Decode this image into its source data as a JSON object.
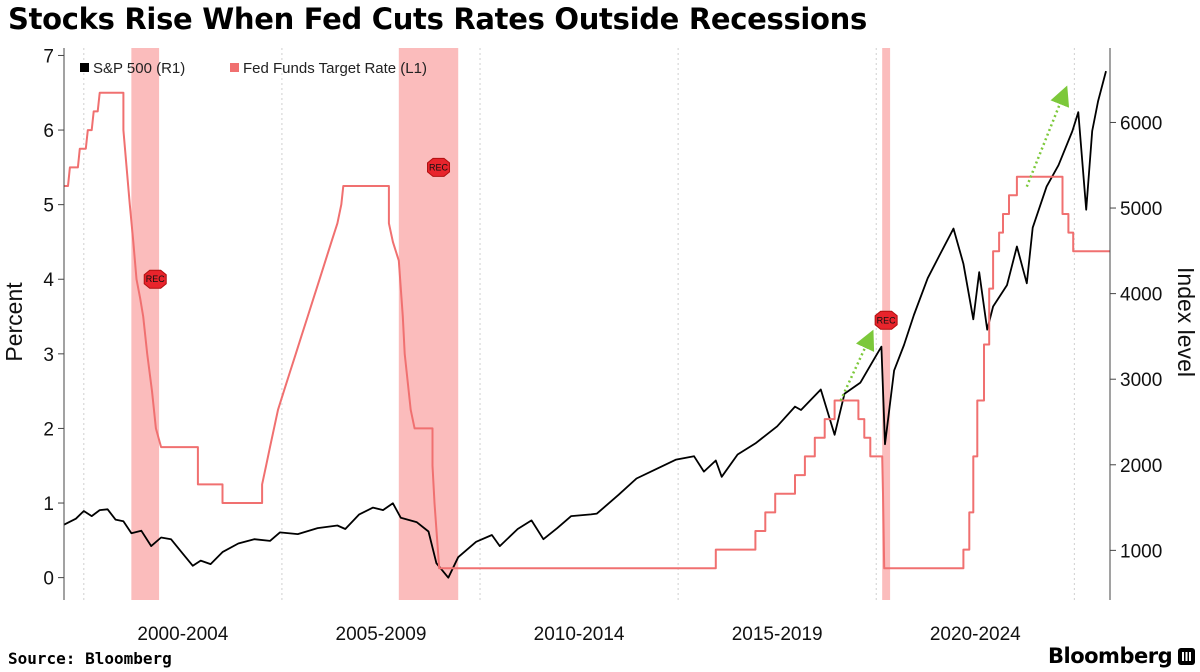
{
  "title": "Stocks Rise When Fed Cuts Rates Outside Recessions",
  "source": "Source: Bloomberg",
  "brand": "Bloomberg",
  "colors": {
    "sp500": "#000000",
    "fed_rate": "#f07070",
    "recession_band": "#f9a0a0",
    "rec_marker": "#e8242c",
    "arrow": "#7cc83a",
    "grid": "#cfcfcf"
  },
  "chart_data": {
    "type": "line",
    "title": "Stocks Rise When Fed Cuts Rates Outside Recessions",
    "x_range": [
      1999.5,
      2025.9
    ],
    "categories": [
      "2000-2004",
      "2005-2009",
      "2010-2014",
      "2015-2019",
      "2020-2024"
    ],
    "y_left": {
      "label": "Percent",
      "range": [
        -0.3,
        7.1
      ],
      "ticks": [
        0,
        1,
        2,
        3,
        4,
        5,
        6,
        7
      ]
    },
    "y_right": {
      "label": "Index level",
      "range": [
        420,
        6870
      ],
      "ticks": [
        1000,
        2000,
        3000,
        4000,
        5000,
        6000
      ]
    },
    "grid": "vertical dotted",
    "legend": {
      "placement": "top-left",
      "entries": [
        "S&P 500 (R1)",
        "Fed Funds Target Rate (L1)"
      ]
    },
    "recessions": [
      {
        "start": 2001.2,
        "end": 2001.9,
        "marker": "REC",
        "marker_value": 4.0
      },
      {
        "start": 2007.95,
        "end": 2009.45,
        "marker": "REC",
        "marker_value": 5.5
      },
      {
        "start": 2020.15,
        "end": 2020.35,
        "marker": "REC",
        "marker_value": 3.45
      }
    ],
    "annotations": [
      {
        "type": "arrow",
        "from": [
          2019.1,
          2750
        ],
        "to": [
          2019.85,
          3500
        ],
        "color": "green"
      },
      {
        "type": "arrow",
        "from": [
          2023.8,
          5250
        ],
        "to": [
          2024.75,
          6350
        ],
        "color": "green"
      }
    ],
    "series": [
      {
        "name": "S&P 500 (R1)",
        "axis": "right",
        "points": [
          [
            1999.5,
            1300
          ],
          [
            1999.8,
            1370
          ],
          [
            2000.0,
            1460
          ],
          [
            2000.2,
            1400
          ],
          [
            2000.4,
            1470
          ],
          [
            2000.6,
            1480
          ],
          [
            2000.8,
            1360
          ],
          [
            2001.0,
            1340
          ],
          [
            2001.2,
            1200
          ],
          [
            2001.45,
            1230
          ],
          [
            2001.7,
            1050
          ],
          [
            2001.95,
            1150
          ],
          [
            2002.2,
            1130
          ],
          [
            2002.5,
            960
          ],
          [
            2002.75,
            820
          ],
          [
            2002.95,
            880
          ],
          [
            2003.2,
            840
          ],
          [
            2003.5,
            980
          ],
          [
            2003.9,
            1080
          ],
          [
            2004.3,
            1130
          ],
          [
            2004.7,
            1110
          ],
          [
            2004.95,
            1210
          ],
          [
            2005.4,
            1190
          ],
          [
            2005.9,
            1260
          ],
          [
            2006.4,
            1290
          ],
          [
            2006.6,
            1250
          ],
          [
            2006.95,
            1420
          ],
          [
            2007.3,
            1500
          ],
          [
            2007.55,
            1470
          ],
          [
            2007.8,
            1550
          ],
          [
            2008.0,
            1380
          ],
          [
            2008.4,
            1330
          ],
          [
            2008.7,
            1220
          ],
          [
            2008.9,
            850
          ],
          [
            2009.2,
            680
          ],
          [
            2009.45,
            920
          ],
          [
            2009.9,
            1100
          ],
          [
            2010.3,
            1180
          ],
          [
            2010.5,
            1050
          ],
          [
            2010.95,
            1250
          ],
          [
            2011.3,
            1350
          ],
          [
            2011.6,
            1130
          ],
          [
            2011.95,
            1260
          ],
          [
            2012.3,
            1400
          ],
          [
            2012.8,
            1420
          ],
          [
            2012.95,
            1430
          ],
          [
            2013.5,
            1650
          ],
          [
            2013.95,
            1840
          ],
          [
            2014.4,
            1940
          ],
          [
            2014.95,
            2060
          ],
          [
            2015.4,
            2100
          ],
          [
            2015.65,
            1920
          ],
          [
            2015.95,
            2050
          ],
          [
            2016.1,
            1860
          ],
          [
            2016.5,
            2120
          ],
          [
            2016.95,
            2250
          ],
          [
            2017.5,
            2450
          ],
          [
            2017.95,
            2680
          ],
          [
            2018.1,
            2640
          ],
          [
            2018.6,
            2880
          ],
          [
            2018.95,
            2350
          ],
          [
            2019.2,
            2830
          ],
          [
            2019.6,
            2960
          ],
          [
            2019.95,
            3240
          ],
          [
            2020.13,
            3380
          ],
          [
            2020.22,
            2240
          ],
          [
            2020.45,
            3100
          ],
          [
            2020.7,
            3400
          ],
          [
            2020.95,
            3750
          ],
          [
            2021.3,
            4180
          ],
          [
            2021.6,
            4450
          ],
          [
            2021.95,
            4760
          ],
          [
            2022.2,
            4350
          ],
          [
            2022.45,
            3700
          ],
          [
            2022.6,
            4250
          ],
          [
            2022.8,
            3580
          ],
          [
            2022.95,
            3850
          ],
          [
            2023.3,
            4100
          ],
          [
            2023.55,
            4550
          ],
          [
            2023.8,
            4120
          ],
          [
            2023.95,
            4770
          ],
          [
            2024.3,
            5250
          ],
          [
            2024.6,
            5500
          ],
          [
            2024.95,
            5900
          ],
          [
            2025.1,
            6120
          ],
          [
            2025.3,
            4980
          ],
          [
            2025.45,
            5900
          ],
          [
            2025.6,
            6250
          ],
          [
            2025.8,
            6600
          ]
        ]
      },
      {
        "name": "Fed Funds Target Rate (L1)",
        "axis": "left",
        "points": [
          [
            1999.5,
            5.25
          ],
          [
            1999.6,
            5.25
          ],
          [
            1999.65,
            5.5
          ],
          [
            1999.85,
            5.5
          ],
          [
            1999.9,
            5.75
          ],
          [
            2000.05,
            5.75
          ],
          [
            2000.1,
            6.0
          ],
          [
            2000.2,
            6.0
          ],
          [
            2000.25,
            6.25
          ],
          [
            2000.35,
            6.25
          ],
          [
            2000.4,
            6.5
          ],
          [
            2001.0,
            6.5
          ],
          [
            2001.0,
            6.0
          ],
          [
            2001.08,
            5.5
          ],
          [
            2001.16,
            5.0
          ],
          [
            2001.25,
            4.5
          ],
          [
            2001.33,
            4.0
          ],
          [
            2001.42,
            3.75
          ],
          [
            2001.5,
            3.5
          ],
          [
            2001.6,
            3.0
          ],
          [
            2001.72,
            2.5
          ],
          [
            2001.82,
            2.0
          ],
          [
            2001.95,
            1.75
          ],
          [
            2002.88,
            1.75
          ],
          [
            2002.88,
            1.25
          ],
          [
            2003.5,
            1.25
          ],
          [
            2003.5,
            1.0
          ],
          [
            2004.5,
            1.0
          ],
          [
            2004.5,
            1.25
          ],
          [
            2004.6,
            1.5
          ],
          [
            2004.7,
            1.75
          ],
          [
            2004.8,
            2.0
          ],
          [
            2004.9,
            2.25
          ],
          [
            2005.05,
            2.5
          ],
          [
            2005.2,
            2.75
          ],
          [
            2005.35,
            3.0
          ],
          [
            2005.5,
            3.25
          ],
          [
            2005.65,
            3.5
          ],
          [
            2005.8,
            3.75
          ],
          [
            2005.95,
            4.0
          ],
          [
            2006.1,
            4.25
          ],
          [
            2006.25,
            4.5
          ],
          [
            2006.4,
            4.75
          ],
          [
            2006.5,
            5.0
          ],
          [
            2006.55,
            5.25
          ],
          [
            2007.7,
            5.25
          ],
          [
            2007.7,
            4.75
          ],
          [
            2007.8,
            4.5
          ],
          [
            2007.95,
            4.25
          ],
          [
            2008.05,
            3.5
          ],
          [
            2008.1,
            3.0
          ],
          [
            2008.25,
            2.25
          ],
          [
            2008.35,
            2.0
          ],
          [
            2008.8,
            2.0
          ],
          [
            2008.8,
            1.5
          ],
          [
            2008.85,
            1.0
          ],
          [
            2008.97,
            0.125
          ],
          [
            2015.95,
            0.125
          ],
          [
            2015.95,
            0.375
          ],
          [
            2016.95,
            0.375
          ],
          [
            2016.95,
            0.625
          ],
          [
            2017.2,
            0.625
          ],
          [
            2017.2,
            0.875
          ],
          [
            2017.45,
            0.875
          ],
          [
            2017.45,
            1.125
          ],
          [
            2017.95,
            1.125
          ],
          [
            2017.95,
            1.375
          ],
          [
            2018.2,
            1.375
          ],
          [
            2018.2,
            1.625
          ],
          [
            2018.45,
            1.625
          ],
          [
            2018.45,
            1.875
          ],
          [
            2018.7,
            1.875
          ],
          [
            2018.7,
            2.125
          ],
          [
            2018.95,
            2.125
          ],
          [
            2018.95,
            2.375
          ],
          [
            2019.55,
            2.375
          ],
          [
            2019.55,
            2.125
          ],
          [
            2019.7,
            2.125
          ],
          [
            2019.7,
            1.875
          ],
          [
            2019.85,
            1.875
          ],
          [
            2019.85,
            1.625
          ],
          [
            2020.15,
            1.625
          ],
          [
            2020.17,
            1.125
          ],
          [
            2020.2,
            0.125
          ],
          [
            2022.2,
            0.125
          ],
          [
            2022.2,
            0.375
          ],
          [
            2022.35,
            0.375
          ],
          [
            2022.35,
            0.875
          ],
          [
            2022.45,
            0.875
          ],
          [
            2022.45,
            1.625
          ],
          [
            2022.55,
            1.625
          ],
          [
            2022.55,
            2.375
          ],
          [
            2022.72,
            2.375
          ],
          [
            2022.72,
            3.125
          ],
          [
            2022.85,
            3.125
          ],
          [
            2022.85,
            3.875
          ],
          [
            2022.95,
            3.875
          ],
          [
            2022.95,
            4.375
          ],
          [
            2023.1,
            4.375
          ],
          [
            2023.1,
            4.625
          ],
          [
            2023.2,
            4.625
          ],
          [
            2023.2,
            4.875
          ],
          [
            2023.35,
            4.875
          ],
          [
            2023.35,
            5.125
          ],
          [
            2023.55,
            5.125
          ],
          [
            2023.55,
            5.375
          ],
          [
            2024.7,
            5.375
          ],
          [
            2024.7,
            4.875
          ],
          [
            2024.85,
            4.875
          ],
          [
            2024.85,
            4.625
          ],
          [
            2024.97,
            4.625
          ],
          [
            2024.97,
            4.375
          ],
          [
            2025.9,
            4.375
          ]
        ]
      }
    ]
  }
}
